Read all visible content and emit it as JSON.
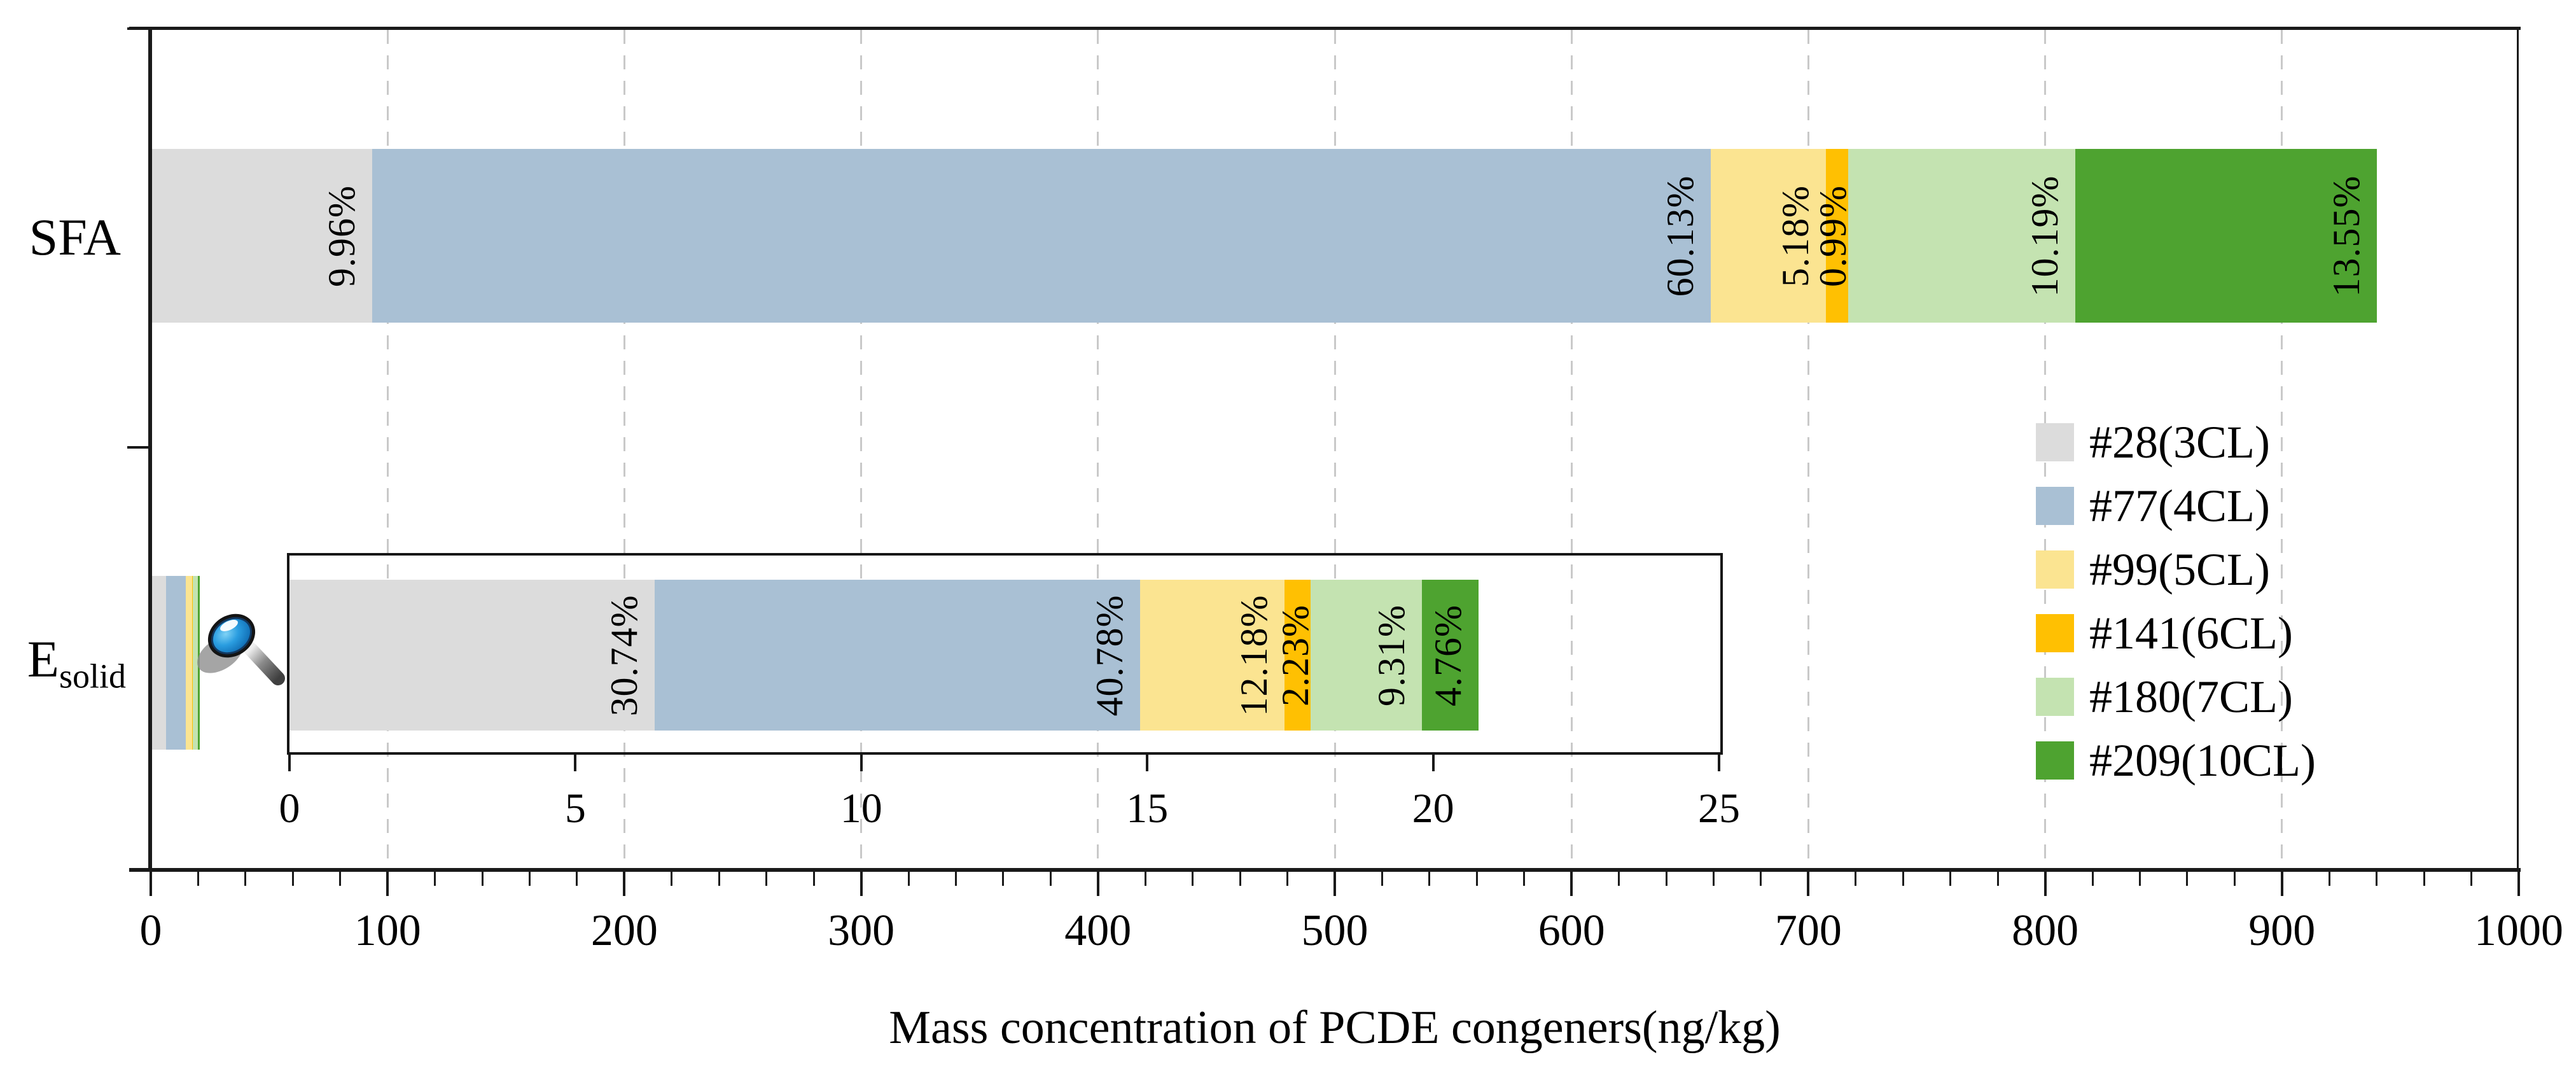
{
  "figure": {
    "background": "#ffffff",
    "axis_color": "#1a1a1a",
    "grid_color": "#c9c9c9"
  },
  "chart_data": {
    "type": "bar",
    "orientation": "horizontal-stacked",
    "xlabel": "Mass concentration of PCDE congeners(ng/kg)",
    "unit": "ng/kg",
    "categories": [
      "SFA",
      "Esolid"
    ],
    "category_labels": {
      "sfa": "SFA",
      "esolid_base": "E",
      "esolid_sub": "solid"
    },
    "x_axis": {
      "min": 0,
      "max": 1000,
      "major_tick_step": 100,
      "minor_tick_step": 20,
      "tick_labels": [
        "0",
        "100",
        "200",
        "300",
        "400",
        "500",
        "600",
        "700",
        "800",
        "900",
        "1000"
      ],
      "grid": "dashed-vertical-at-major-ticks"
    },
    "totals": {
      "SFA": 940,
      "Esolid": 20.8
    },
    "series": [
      {
        "name": "#28(3CL)",
        "color": "#dcdcdc",
        "values": [
          93.62,
          6.39
        ],
        "percents": [
          "9.96%",
          "30.74%"
        ]
      },
      {
        "name": "#77(4CL)",
        "color": "#a9c0d4",
        "values": [
          565.22,
          8.48
        ],
        "percents": [
          "60.13%",
          "40.78%"
        ]
      },
      {
        "name": "#99(5CL)",
        "color": "#fbe491",
        "values": [
          48.69,
          2.53
        ],
        "percents": [
          "5.18%",
          "12.18%"
        ]
      },
      {
        "name": "#141(6CL)",
        "color": "#ffc002",
        "values": [
          9.31,
          0.46
        ],
        "percents": [
          "0.99%",
          "2.23%"
        ]
      },
      {
        "name": "#180(7CL)",
        "color": "#c4e3b1",
        "values": [
          95.79,
          1.94
        ],
        "percents": [
          "10.19%",
          "9.31%"
        ]
      },
      {
        "name": "#209(10CL)",
        "color": "#4ea330",
        "values": [
          127.37,
          0.99
        ],
        "percents": [
          "13.55%",
          "4.76%"
        ]
      }
    ],
    "legend": {
      "position": "middle-right",
      "entries": [
        "#28(3CL)",
        "#77(4CL)",
        "#99(5CL)",
        "#141(6CL)",
        "#180(7CL)",
        "#209(10CL)"
      ]
    },
    "inset": {
      "description": "zoomed view of Esolid bar",
      "icon": "magnifier-icon",
      "x_axis": {
        "min": 0,
        "max": 25,
        "major_tick_step": 5,
        "tick_labels": [
          "0",
          "5",
          "10",
          "15",
          "20",
          "25"
        ]
      }
    }
  }
}
